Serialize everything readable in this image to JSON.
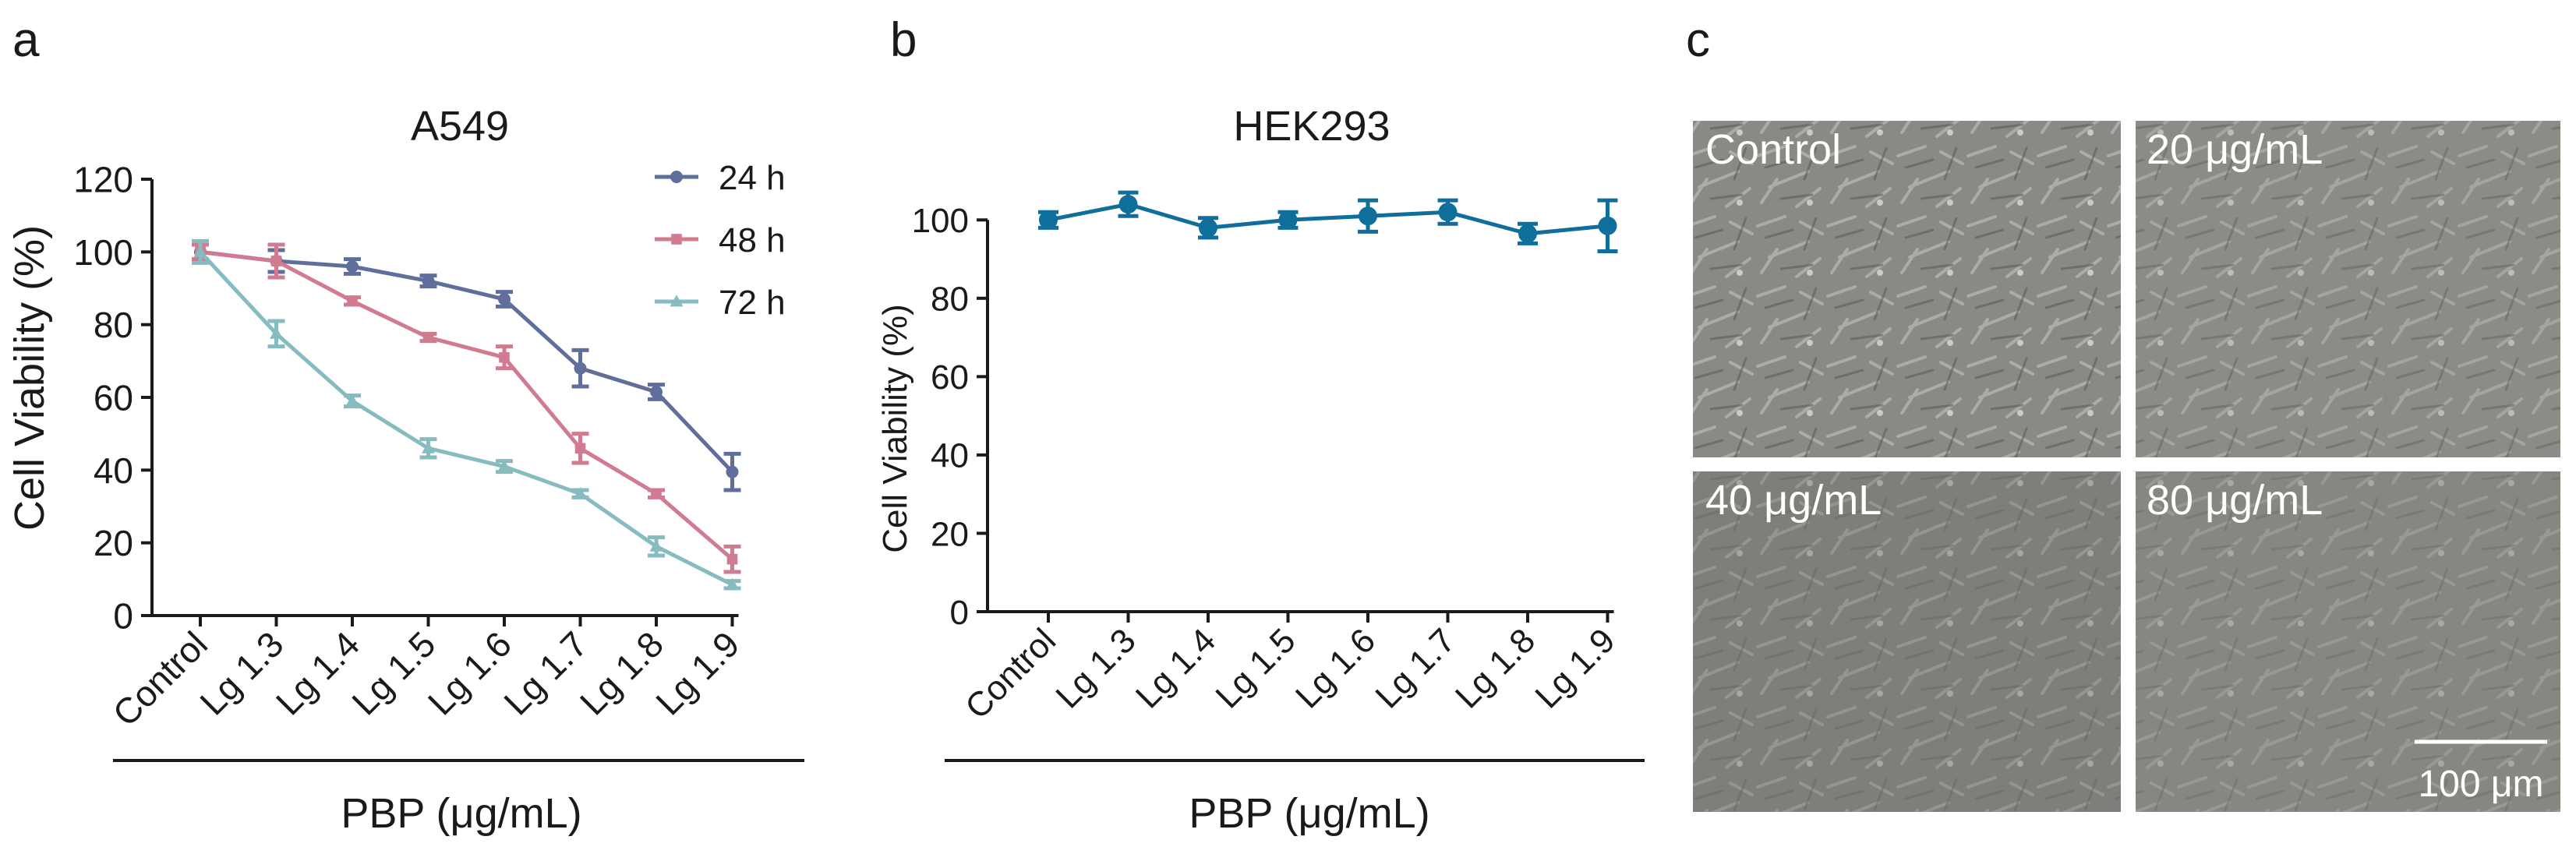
{
  "panel_letters": {
    "a": "a",
    "b": "b",
    "c": "c"
  },
  "micrographs": {
    "labels": [
      "Control",
      "20 μg/mL",
      "40 μg/mL",
      "80 μg/mL"
    ],
    "scale_bar_label": "100 μm",
    "background_colors": [
      "#8a8a84",
      "#8c8c86",
      "#7f7f79",
      "#878781"
    ]
  },
  "chart_data": [
    {
      "type": "line",
      "title": "A549",
      "xlabel": "PBP (μg/mL)",
      "ylabel": "Cell Viability (%)",
      "categories": [
        "Control",
        "Lg 1.3",
        "Lg 1.4",
        "Lg 1.5",
        "Lg 1.6",
        "Lg 1.7",
        "Lg 1.8",
        "Lg 1.9"
      ],
      "ylim": [
        0,
        120
      ],
      "yticks": [
        0,
        20,
        40,
        60,
        80,
        100,
        120
      ],
      "legend_position": "top-right",
      "grid": false,
      "series": [
        {
          "name": "24 h",
          "color": "#5f6e9a",
          "marker": "circle",
          "values": [
            100,
            97.5,
            96,
            92,
            87,
            68,
            61.5,
            39.5
          ],
          "errors": [
            2.5,
            3,
            2,
            1.5,
            2,
            5,
            2,
            5
          ]
        },
        {
          "name": "48 h",
          "color": "#d07b8f",
          "marker": "square",
          "values": [
            100,
            97.5,
            86.5,
            76.5,
            71,
            46,
            33.5,
            15.5
          ],
          "errors": [
            2,
            4.5,
            1,
            1,
            3,
            4,
            1,
            3.5
          ]
        },
        {
          "name": "72 h",
          "color": "#86bcc0",
          "marker": "triangle",
          "values": [
            100,
            77.5,
            59,
            46,
            41,
            33.5,
            19,
            8.5
          ],
          "errors": [
            3,
            3.5,
            1.5,
            2.5,
            1.5,
            1,
            2.5,
            1
          ]
        }
      ]
    },
    {
      "type": "line",
      "title": "HEK293",
      "xlabel": "PBP (μg/mL)",
      "ylabel": "Cell Viability (%)",
      "categories": [
        "Control",
        "Lg 1.3",
        "Lg 1.4",
        "Lg 1.5",
        "Lg 1.6",
        "Lg 1.7",
        "Lg 1.8",
        "Lg 1.9"
      ],
      "ylim": [
        0,
        110
      ],
      "yticks": [
        0,
        20,
        40,
        60,
        80,
        100
      ],
      "grid": false,
      "series": [
        {
          "color": "#0f6e9c",
          "marker": "circle",
          "values": [
            100,
            104,
            98,
            100,
            101,
            102,
            96.5,
            98.5
          ],
          "errors": [
            2,
            3,
            2.5,
            2,
            4,
            3,
            2.5,
            6.5
          ]
        }
      ]
    }
  ]
}
